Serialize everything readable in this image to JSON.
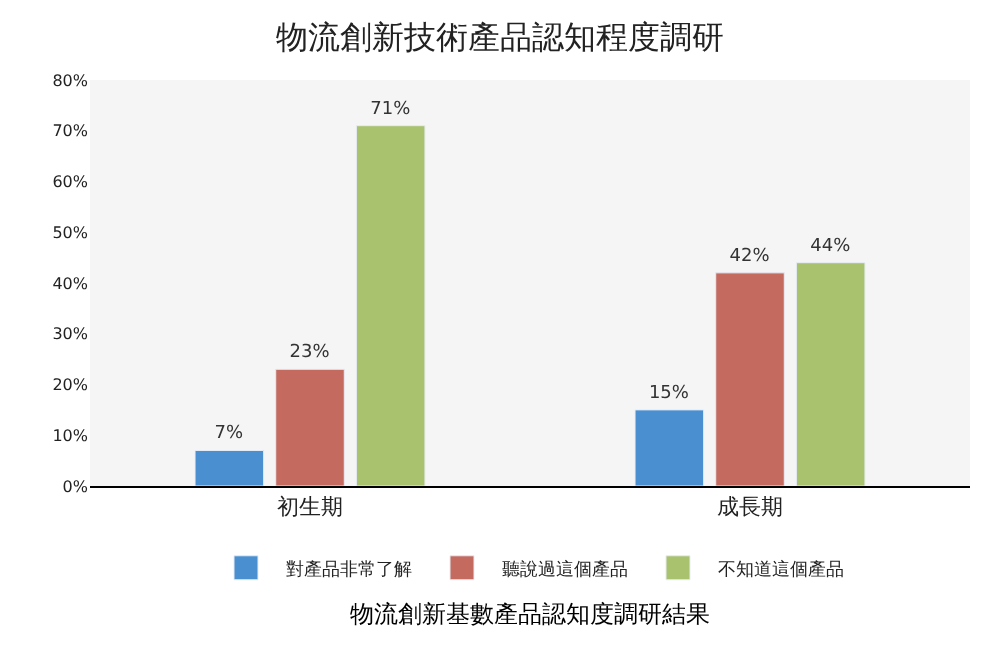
{
  "chart_data": {
    "type": "bar",
    "title": "物流創新技術產品認知程度調研",
    "categories": [
      "初生期",
      "成長期"
    ],
    "series": [
      {
        "name": "對產品非常了解",
        "color": "#4a8fcf",
        "values": [
          7,
          15
        ],
        "value_labels": [
          "7%",
          "15%"
        ]
      },
      {
        "name": "聽說過這個產品",
        "color": "#c46a5f",
        "values": [
          23,
          42
        ],
        "value_labels": [
          "23%",
          "42%"
        ]
      },
      {
        "name": "不知道這個產品",
        "color": "#a9c26d",
        "values": [
          71,
          44
        ],
        "value_labels": [
          "71%",
          "44%"
        ]
      }
    ],
    "ylim": [
      0,
      80
    ],
    "yticks": [
      {
        "value": 0,
        "label": "0%"
      },
      {
        "value": 10,
        "label": "10%"
      },
      {
        "value": 20,
        "label": "20%"
      },
      {
        "value": 30,
        "label": "30%"
      },
      {
        "value": 40,
        "label": "40%"
      },
      {
        "value": 50,
        "label": "50%"
      },
      {
        "value": 60,
        "label": "60%"
      },
      {
        "value": 70,
        "label": "70%"
      },
      {
        "value": 80,
        "label": "80%"
      }
    ],
    "grid": false,
    "legend": "bottom",
    "annotations": [
      "物流創新基數產品認知度調研結果"
    ]
  }
}
